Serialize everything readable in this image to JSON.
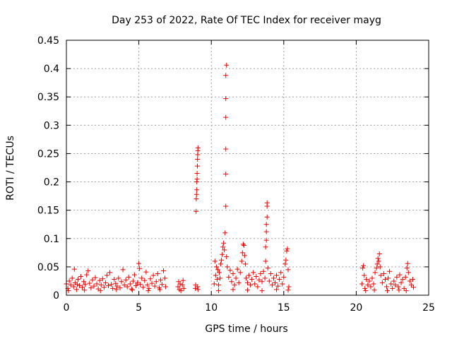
{
  "chart_data": {
    "type": "scatter",
    "title": "Day 253 of 2022, Rate Of TEC Index for receiver mayg",
    "xlabel": "GPS time / hours",
    "ylabel": "ROTI / TECUs",
    "xlim": [
      0,
      25
    ],
    "ylim": [
      0,
      0.45
    ],
    "xticks": [
      0,
      5,
      10,
      15,
      20,
      25
    ],
    "yticks": [
      0,
      0.05,
      0.1,
      0.15,
      0.2,
      0.25,
      0.3,
      0.35,
      0.4,
      0.45
    ],
    "grid": true,
    "marker": "+",
    "series": [
      {
        "color": "#ee0000",
        "points": [
          [
            0.0,
            0.02
          ],
          [
            0.1,
            0.012
          ],
          [
            0.2,
            0.025
          ],
          [
            0.3,
            0.018
          ],
          [
            0.4,
            0.03
          ],
          [
            0.5,
            0.015
          ],
          [
            0.55,
            0.046
          ],
          [
            0.6,
            0.022
          ],
          [
            0.7,
            0.01
          ],
          [
            0.8,
            0.028
          ],
          [
            0.9,
            0.017
          ],
          [
            1.0,
            0.033
          ],
          [
            1.1,
            0.014
          ],
          [
            1.2,
            0.024
          ],
          [
            1.3,
            0.019
          ],
          [
            1.4,
            0.036
          ],
          [
            1.5,
            0.043
          ],
          [
            1.6,
            0.021
          ],
          [
            1.7,
            0.013
          ],
          [
            1.8,
            0.027
          ],
          [
            1.9,
            0.016
          ],
          [
            2.0,
            0.031
          ],
          [
            2.1,
            0.02
          ],
          [
            2.2,
            0.011
          ],
          [
            2.3,
            0.026
          ],
          [
            2.4,
            0.018
          ],
          [
            2.5,
            0.029
          ],
          [
            2.6,
            0.014
          ],
          [
            2.7,
            0.022
          ],
          [
            2.8,
            0.035
          ],
          [
            2.9,
            0.017
          ],
          [
            3.0,
            0.04
          ],
          [
            3.1,
            0.019
          ],
          [
            3.2,
            0.012
          ],
          [
            3.3,
            0.028
          ],
          [
            3.4,
            0.021
          ],
          [
            3.5,
            0.016
          ],
          [
            3.6,
            0.03
          ],
          [
            3.7,
            0.013
          ],
          [
            3.8,
            0.024
          ],
          [
            3.9,
            0.045
          ],
          [
            4.0,
            0.018
          ],
          [
            4.1,
            0.027
          ],
          [
            4.2,
            0.015
          ],
          [
            4.3,
            0.032
          ],
          [
            4.4,
            0.02
          ],
          [
            4.5,
            0.011
          ],
          [
            4.6,
            0.025
          ],
          [
            4.7,
            0.036
          ],
          [
            4.8,
            0.017
          ],
          [
            4.9,
            0.022
          ],
          [
            5.0,
            0.056
          ],
          [
            5.05,
            0.047
          ],
          [
            5.1,
            0.019
          ],
          [
            5.2,
            0.03
          ],
          [
            5.3,
            0.014
          ],
          [
            5.4,
            0.026
          ],
          [
            5.5,
            0.041
          ],
          [
            5.6,
            0.018
          ],
          [
            5.7,
            0.012
          ],
          [
            5.8,
            0.029
          ],
          [
            5.9,
            0.021
          ],
          [
            6.0,
            0.035
          ],
          [
            6.1,
            0.016
          ],
          [
            6.2,
            0.024
          ],
          [
            6.3,
            0.038
          ],
          [
            6.4,
            0.013
          ],
          [
            6.5,
            0.027
          ],
          [
            6.6,
            0.019
          ],
          [
            6.7,
            0.043
          ],
          [
            6.8,
            0.03
          ],
          [
            6.85,
            0.015
          ],
          [
            0.15,
            0.008
          ],
          [
            1.25,
            0.009
          ],
          [
            2.35,
            0.008
          ],
          [
            3.45,
            0.01
          ],
          [
            4.55,
            0.009
          ],
          [
            5.65,
            0.008
          ],
          [
            6.45,
            0.01
          ],
          [
            0.75,
            0.019
          ],
          [
            7.7,
            0.015
          ],
          [
            7.75,
            0.024
          ],
          [
            7.8,
            0.01
          ],
          [
            7.85,
            0.02
          ],
          [
            7.9,
            0.008
          ],
          [
            8.0,
            0.018
          ],
          [
            8.05,
            0.026
          ],
          [
            8.1,
            0.012
          ],
          [
            8.9,
            0.012
          ],
          [
            8.92,
            0.018
          ],
          [
            8.95,
            0.148
          ],
          [
            8.96,
            0.17
          ],
          [
            8.98,
            0.178
          ],
          [
            9.0,
            0.186
          ],
          [
            9.0,
            0.2
          ],
          [
            9.02,
            0.205
          ],
          [
            9.02,
            0.215
          ],
          [
            9.04,
            0.228
          ],
          [
            9.05,
            0.24
          ],
          [
            9.06,
            0.248
          ],
          [
            9.07,
            0.255
          ],
          [
            9.08,
            0.26
          ],
          [
            9.05,
            0.015
          ],
          [
            9.08,
            0.01
          ],
          [
            10.2,
            0.02
          ],
          [
            10.25,
            0.06
          ],
          [
            10.3,
            0.035
          ],
          [
            10.35,
            0.05
          ],
          [
            10.4,
            0.028
          ],
          [
            10.45,
            0.045
          ],
          [
            10.5,
            0.018
          ],
          [
            10.55,
            0.04
          ],
          [
            10.6,
            0.03
          ],
          [
            10.65,
            0.055
          ],
          [
            10.7,
            0.062
          ],
          [
            10.75,
            0.072
          ],
          [
            10.8,
            0.085
          ],
          [
            10.85,
            0.092
          ],
          [
            10.9,
            0.08
          ],
          [
            10.95,
            0.11
          ],
          [
            11.0,
            0.157
          ],
          [
            11.0,
            0.214
          ],
          [
            11.0,
            0.258
          ],
          [
            11.0,
            0.314
          ],
          [
            11.0,
            0.347
          ],
          [
            11.0,
            0.388
          ],
          [
            11.05,
            0.406
          ],
          [
            11.05,
            0.068
          ],
          [
            11.1,
            0.05
          ],
          [
            11.2,
            0.032
          ],
          [
            11.3,
            0.044
          ],
          [
            11.4,
            0.024
          ],
          [
            11.5,
            0.038
          ],
          [
            11.6,
            0.018
          ],
          [
            11.7,
            0.03
          ],
          [
            11.8,
            0.046
          ],
          [
            11.9,
            0.022
          ],
          [
            12.0,
            0.04
          ],
          [
            12.1,
            0.06
          ],
          [
            12.15,
            0.075
          ],
          [
            12.2,
            0.09
          ],
          [
            12.25,
            0.088
          ],
          [
            12.3,
            0.07
          ],
          [
            12.35,
            0.055
          ],
          [
            12.4,
            0.03
          ],
          [
            12.5,
            0.022
          ],
          [
            12.6,
            0.035
          ],
          [
            12.7,
            0.018
          ],
          [
            12.8,
            0.028
          ],
          [
            12.9,
            0.04
          ],
          [
            13.0,
            0.02
          ],
          [
            13.1,
            0.033
          ],
          [
            13.2,
            0.015
          ],
          [
            13.3,
            0.027
          ],
          [
            13.4,
            0.038
          ],
          [
            13.5,
            0.024
          ],
          [
            13.6,
            0.042
          ],
          [
            13.7,
            0.03
          ],
          [
            13.75,
            0.06
          ],
          [
            13.75,
            0.085
          ],
          [
            13.8,
            0.097
          ],
          [
            13.8,
            0.112
          ],
          [
            13.8,
            0.125
          ],
          [
            13.85,
            0.138
          ],
          [
            13.85,
            0.157
          ],
          [
            13.85,
            0.163
          ],
          [
            13.9,
            0.048
          ],
          [
            14.0,
            0.025
          ],
          [
            14.1,
            0.038
          ],
          [
            14.2,
            0.018
          ],
          [
            14.3,
            0.03
          ],
          [
            14.4,
            0.022
          ],
          [
            14.5,
            0.035
          ],
          [
            14.6,
            0.016
          ],
          [
            14.7,
            0.028
          ],
          [
            14.8,
            0.04
          ],
          [
            14.9,
            0.02
          ],
          [
            15.0,
            0.032
          ],
          [
            15.1,
            0.055
          ],
          [
            15.15,
            0.062
          ],
          [
            15.2,
            0.078
          ],
          [
            15.25,
            0.082
          ],
          [
            15.3,
            0.045
          ],
          [
            15.35,
            0.015
          ],
          [
            10.5,
            0.008
          ],
          [
            11.5,
            0.01
          ],
          [
            12.5,
            0.009
          ],
          [
            13.5,
            0.008
          ],
          [
            14.5,
            0.01
          ],
          [
            15.3,
            0.009
          ],
          [
            20.4,
            0.02
          ],
          [
            20.45,
            0.048
          ],
          [
            20.5,
            0.052
          ],
          [
            20.55,
            0.035
          ],
          [
            20.6,
            0.012
          ],
          [
            20.7,
            0.028
          ],
          [
            20.8,
            0.018
          ],
          [
            20.9,
            0.025
          ],
          [
            21.0,
            0.015
          ],
          [
            21.1,
            0.03
          ],
          [
            21.2,
            0.02
          ],
          [
            21.3,
            0.04
          ],
          [
            21.4,
            0.048
          ],
          [
            21.45,
            0.055
          ],
          [
            21.5,
            0.065
          ],
          [
            21.55,
            0.06
          ],
          [
            21.6,
            0.073
          ],
          [
            21.65,
            0.05
          ],
          [
            21.7,
            0.035
          ],
          [
            21.8,
            0.022
          ],
          [
            21.9,
            0.038
          ],
          [
            22.0,
            0.028
          ],
          [
            22.1,
            0.015
          ],
          [
            22.2,
            0.03
          ],
          [
            22.3,
            0.042
          ],
          [
            22.4,
            0.02
          ],
          [
            22.5,
            0.012
          ],
          [
            22.6,
            0.025
          ],
          [
            22.7,
            0.018
          ],
          [
            22.8,
            0.032
          ],
          [
            22.9,
            0.015
          ],
          [
            23.0,
            0.036
          ],
          [
            23.1,
            0.022
          ],
          [
            23.2,
            0.028
          ],
          [
            23.3,
            0.012
          ],
          [
            23.4,
            0.032
          ],
          [
            23.5,
            0.048
          ],
          [
            23.55,
            0.056
          ],
          [
            23.6,
            0.04
          ],
          [
            23.7,
            0.025
          ],
          [
            23.8,
            0.018
          ],
          [
            23.9,
            0.028
          ],
          [
            23.95,
            0.014
          ],
          [
            20.65,
            0.008
          ],
          [
            21.25,
            0.009
          ],
          [
            22.15,
            0.008
          ],
          [
            22.95,
            0.009
          ],
          [
            23.45,
            0.008
          ]
        ]
      }
    ]
  }
}
